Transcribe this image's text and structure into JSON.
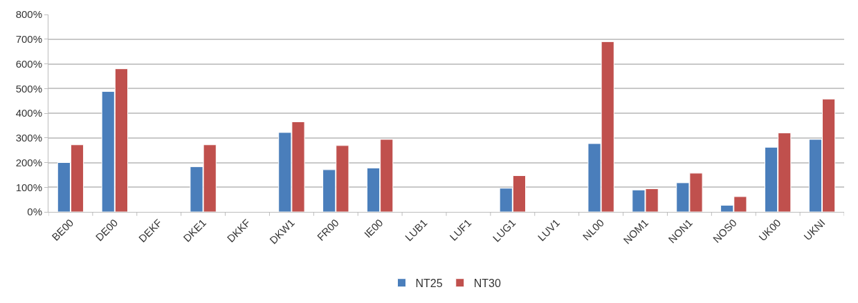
{
  "chart_data": {
    "type": "bar",
    "categories": [
      "BE00",
      "DE00",
      "DEKF",
      "DKE1",
      "DKKF",
      "DKW1",
      "FR00",
      "IE00",
      "LUB1",
      "LUF1",
      "LUG1",
      "LUV1",
      "NL00",
      "NOM1",
      "NON1",
      "NOS0",
      "UK00",
      "UKNI"
    ],
    "series": [
      {
        "name": "NT25",
        "color": "#4a7ebb",
        "values": [
          200,
          488,
          null,
          183,
          null,
          322,
          171,
          178,
          null,
          null,
          96,
          null,
          277,
          89,
          118,
          27,
          262,
          294
        ]
      },
      {
        "name": "NT30",
        "color": "#c0504d",
        "values": [
          272,
          580,
          null,
          272,
          null,
          365,
          269,
          294,
          null,
          null,
          147,
          null,
          690,
          94,
          157,
          62,
          320,
          457
        ]
      }
    ],
    "ylim": [
      0,
      800
    ],
    "yticks": [
      {
        "value": 0,
        "label": "0%"
      },
      {
        "value": 100,
        "label": "100%"
      },
      {
        "value": 200,
        "label": "200%"
      },
      {
        "value": 300,
        "label": "300%"
      },
      {
        "value": 400,
        "label": "400%"
      },
      {
        "value": 500,
        "label": "500%"
      },
      {
        "value": 600,
        "label": "600%"
      },
      {
        "value": 700,
        "label": "700%"
      },
      {
        "value": 800,
        "label": "800%"
      }
    ],
    "grid": "y",
    "legend": "bottom"
  }
}
